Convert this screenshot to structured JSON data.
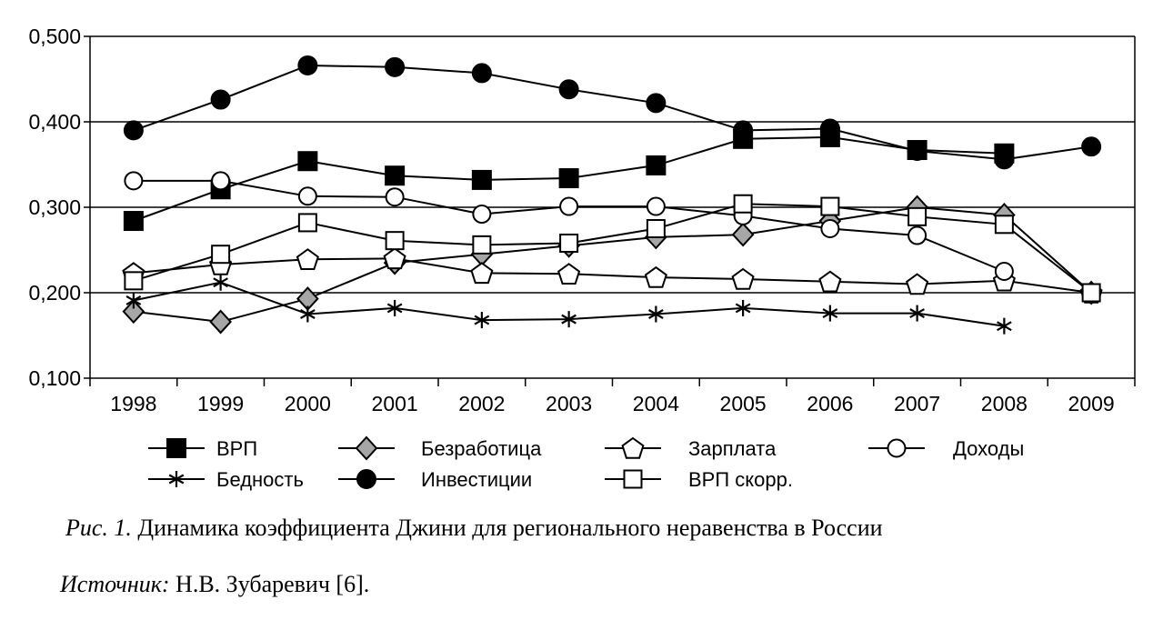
{
  "chart_data": {
    "type": "line",
    "ylim": [
      0.1,
      0.5
    ],
    "y_ticks": [
      "0,100",
      "0,200",
      "0,300",
      "0,400",
      "0,500"
    ],
    "grid": "horizontal",
    "legend_position": "bottom",
    "categories": [
      "1998",
      "1999",
      "2000",
      "2001",
      "2002",
      "2003",
      "2004",
      "2005",
      "2006",
      "2007",
      "2008",
      "2009"
    ],
    "series": [
      {
        "name": "ВРП",
        "marker": "square-filled",
        "values": [
          0.284,
          0.321,
          0.354,
          0.337,
          0.332,
          0.334,
          0.349,
          0.38,
          0.382,
          0.367,
          0.363,
          null
        ]
      },
      {
        "name": "Безработица",
        "marker": "diamond-gray",
        "values": [
          0.178,
          0.166,
          0.193,
          0.235,
          0.245,
          0.255,
          0.265,
          0.268,
          0.284,
          0.3,
          0.291,
          0.2
        ]
      },
      {
        "name": "Зарплата",
        "marker": "pentagon-open",
        "values": [
          0.223,
          0.233,
          0.239,
          0.24,
          0.223,
          0.222,
          0.218,
          0.216,
          0.213,
          0.21,
          0.214,
          0.2
        ]
      },
      {
        "name": "Доходы",
        "marker": "circle-open",
        "values": [
          0.331,
          0.331,
          0.313,
          0.312,
          0.292,
          0.301,
          0.301,
          0.29,
          0.275,
          0.267,
          0.225,
          null
        ]
      },
      {
        "name": "Бедность",
        "marker": "asterisk",
        "values": [
          0.191,
          0.212,
          0.175,
          0.182,
          0.168,
          0.169,
          0.175,
          0.182,
          0.176,
          0.176,
          0.161,
          null
        ]
      },
      {
        "name": "Инвестиции",
        "marker": "circle-filled",
        "values": [
          0.39,
          0.426,
          0.466,
          0.464,
          0.457,
          0.438,
          0.422,
          0.39,
          0.392,
          0.366,
          0.356,
          0.371
        ]
      },
      {
        "name": "ВРП скорр.",
        "marker": "square-open",
        "values": [
          0.214,
          0.245,
          0.282,
          0.261,
          0.256,
          0.258,
          0.275,
          0.304,
          0.301,
          0.289,
          0.28,
          0.2
        ]
      }
    ]
  },
  "caption": {
    "label": "Рис. 1.",
    "text": " Динамика коэффициента Джини для регионального неравенства в России"
  },
  "source": {
    "label": "Источник:",
    "text": " Н.В. Зубаревич [6]."
  }
}
